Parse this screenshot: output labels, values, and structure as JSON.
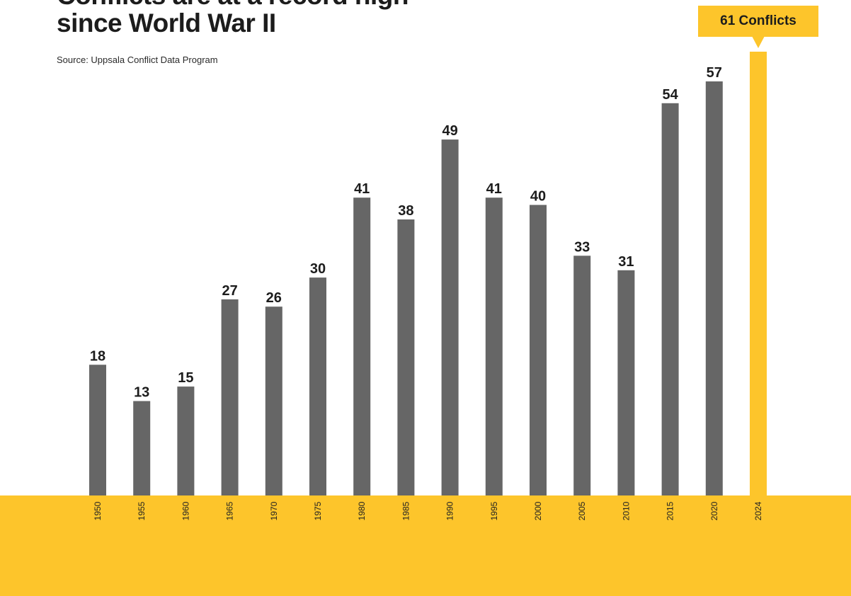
{
  "title_lines": [
    "Conflicts are at a record high",
    "since World War II"
  ],
  "source": "Source: Uppsala Conflict Data Program",
  "callout": "61 Conflicts",
  "colors": {
    "bar": "#666666",
    "highlight": "#fdc52b",
    "base_band": "#fdc52b",
    "value_label": "#1c1c1c",
    "tick_label": "#222222"
  },
  "chart_data": {
    "type": "bar",
    "categories": [
      "1950",
      "1955",
      "1960",
      "1965",
      "1970",
      "1975",
      "1980",
      "1985",
      "1990",
      "1995",
      "2000",
      "2005",
      "2010",
      "2015",
      "2020",
      "2024"
    ],
    "values": [
      18,
      13,
      15,
      27,
      26,
      30,
      41,
      38,
      49,
      41,
      40,
      33,
      31,
      54,
      57,
      61
    ],
    "labels": [
      "18",
      "13",
      "15",
      "27",
      "26",
      "30",
      "41",
      "38",
      "49",
      "41",
      "40",
      "33",
      "31",
      "54",
      "57",
      ""
    ],
    "highlight_index": 15,
    "ylim": [
      0,
      61
    ],
    "grid": false,
    "xlabel": "",
    "ylabel": ""
  }
}
